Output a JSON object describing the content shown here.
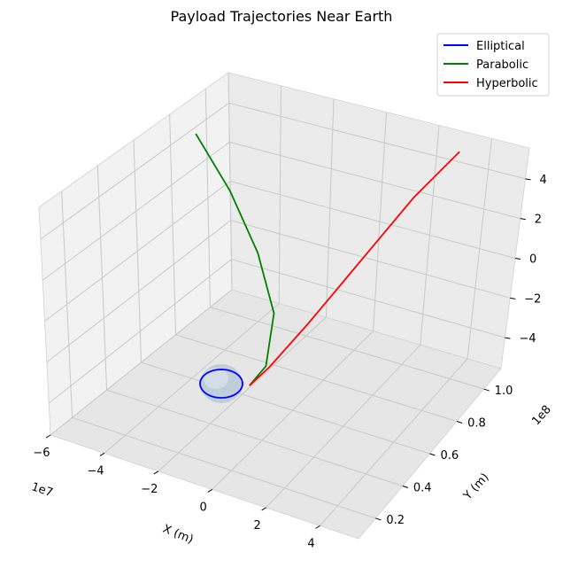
{
  "chart_data": {
    "type": "line",
    "projection": "3d",
    "title": "Payload Trajectories Near Earth",
    "xlabel": "X (m)",
    "ylabel": "Y (m)",
    "zlabel": "",
    "x_offset_label": "1e7",
    "y_offset_label": "1e8",
    "x_ticks": [
      "−6",
      "−4",
      "−2",
      "0",
      "2",
      "4"
    ],
    "y_ticks": [
      "0.2",
      "0.4",
      "0.6",
      "0.8",
      "1.0"
    ],
    "z_ticks": [
      "4",
      "2",
      "0",
      "−2",
      "−4"
    ],
    "grid": true,
    "legend_position": "top-right",
    "colors": {
      "Elliptical": "#0000ff",
      "Parabolic": "#008000",
      "Hyperbolic": "#ff0000",
      "earth": "#9fb8cf"
    },
    "series": [
      {
        "name": "Elliptical",
        "points": [
          [
            -1.0,
            0.05,
            0.0
          ],
          [
            -0.7,
            0.0,
            0.0
          ],
          [
            0.0,
            -0.02,
            0.0
          ],
          [
            0.7,
            0.0,
            0.0
          ],
          [
            1.0,
            0.05,
            0.0
          ],
          [
            0.7,
            0.1,
            0.0
          ],
          [
            0.0,
            0.12,
            0.0
          ],
          [
            -0.7,
            0.1,
            0.0
          ],
          [
            -1.0,
            0.05,
            0.0
          ]
        ]
      },
      {
        "name": "Parabolic",
        "points": [
          [
            0.65,
            0.04,
            0.0
          ],
          [
            0.8,
            0.12,
            0.3
          ],
          [
            0.5,
            0.25,
            1.2
          ],
          [
            -0.5,
            0.38,
            2.1
          ],
          [
            -1.8,
            0.5,
            3.0
          ],
          [
            -3.2,
            0.6,
            3.8
          ]
        ]
      },
      {
        "name": "Hyperbolic",
        "points": [
          [
            0.65,
            0.04,
            0.0
          ],
          [
            0.9,
            0.12,
            0.3
          ],
          [
            1.3,
            0.3,
            1.0
          ],
          [
            1.8,
            0.55,
            2.0
          ],
          [
            2.3,
            0.8,
            3.0
          ],
          [
            2.8,
            1.0,
            3.7
          ]
        ]
      }
    ]
  }
}
